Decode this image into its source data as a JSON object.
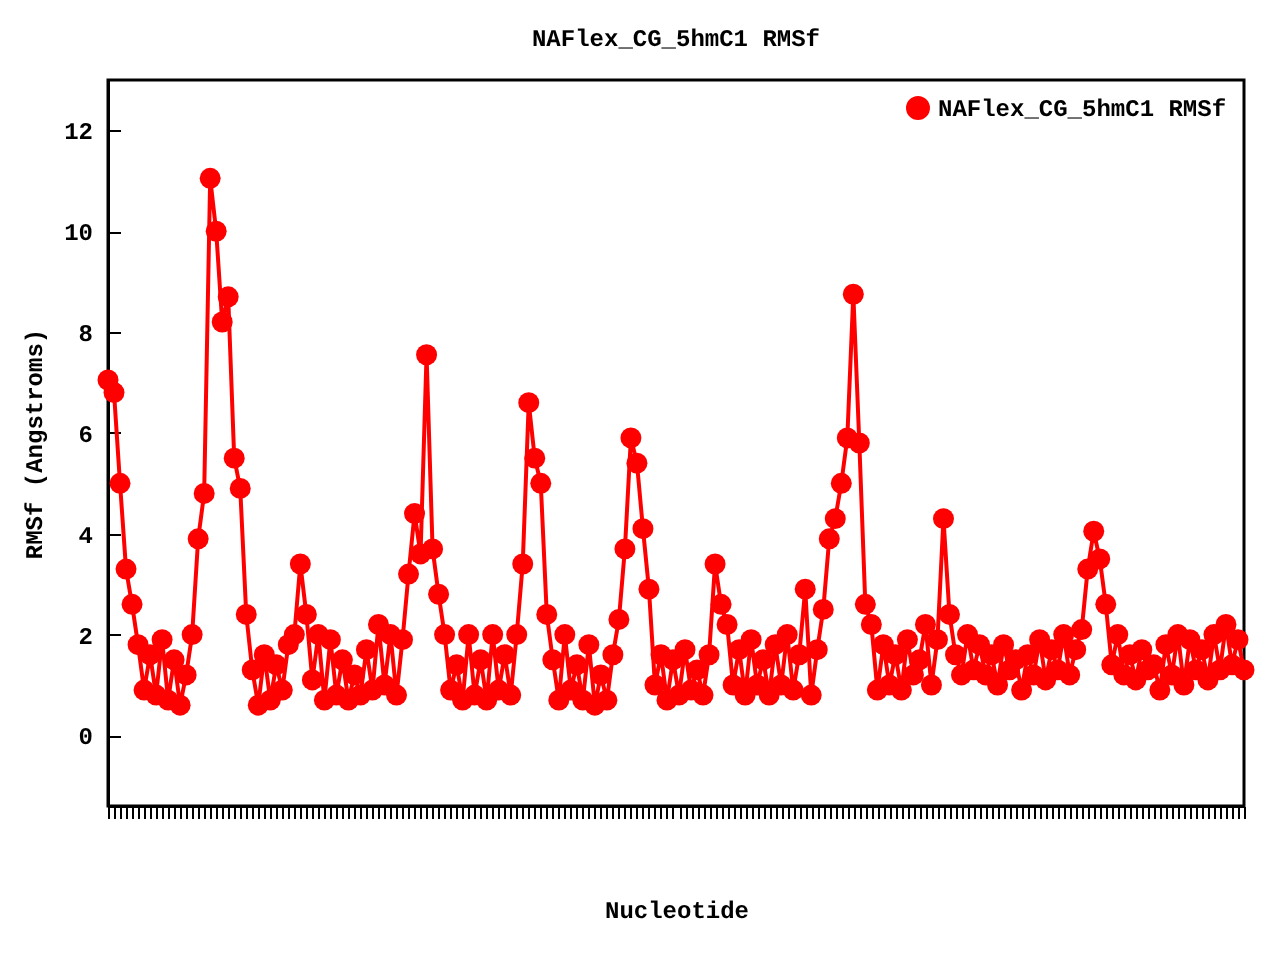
{
  "chart_data": {
    "type": "line",
    "title": "NAFlex_CG_5hmC1 RMSf",
    "xlabel": "Nucleotide",
    "ylabel": "RMSf (Angstroms)",
    "categories": [
      null,
      null,
      null,
      null,
      null,
      null,
      null,
      null,
      null,
      null,
      null,
      null,
      null,
      null,
      null,
      null,
      null,
      null,
      null,
      null,
      null,
      null,
      null,
      null,
      null,
      null,
      null,
      null,
      null,
      null,
      null,
      null,
      null,
      null,
      null,
      null,
      null,
      null,
      null,
      null,
      null,
      null,
      null,
      null,
      null,
      null,
      null,
      null,
      null,
      null,
      null,
      null,
      null,
      null,
      null,
      null,
      null,
      null,
      null,
      null,
      null,
      null,
      null,
      null,
      null,
      null,
      null,
      null,
      null,
      null,
      null,
      null,
      null,
      null,
      null,
      null,
      null,
      null,
      null,
      null,
      null,
      null,
      null,
      null,
      null,
      null,
      null,
      null,
      null,
      null,
      null,
      null,
      null,
      null,
      null,
      null,
      null,
      null,
      null,
      null,
      null,
      null,
      null,
      null,
      null,
      null,
      null,
      null,
      null,
      null,
      null,
      null,
      null,
      null,
      null,
      null,
      null,
      null,
      null,
      null,
      null,
      null,
      null,
      null,
      null,
      null,
      null,
      null,
      null,
      null,
      null,
      null,
      null,
      null,
      null,
      null,
      null,
      null,
      null,
      null,
      null,
      null,
      null,
      null,
      null,
      null,
      null,
      null,
      null,
      null,
      null,
      null,
      null,
      null,
      null,
      null,
      null,
      null,
      null,
      null,
      null,
      null,
      null,
      null,
      null,
      null,
      null,
      null,
      null,
      null,
      null,
      null,
      null,
      null,
      null,
      null,
      null,
      null,
      null,
      null,
      null,
      null,
      null,
      null,
      null,
      null,
      null,
      null,
      null,
      null
    ],
    "series": [
      {
        "name": "NAFlex_CG_5hmC1 RMSf",
        "color": "#ff0000",
        "values": [
          7.05,
          6.8,
          5.0,
          3.3,
          2.6,
          1.8,
          0.9,
          1.6,
          0.8,
          1.9,
          0.7,
          1.5,
          0.6,
          1.2,
          2.0,
          3.9,
          4.8,
          11.05,
          10.0,
          8.2,
          8.7,
          5.5,
          4.9,
          2.4,
          1.3,
          0.6,
          1.6,
          0.7,
          1.4,
          0.9,
          1.8,
          2.0,
          3.4,
          2.4,
          1.1,
          2.0,
          0.7,
          1.9,
          0.8,
          1.5,
          0.7,
          1.2,
          0.8,
          1.7,
          0.9,
          2.2,
          1.0,
          2.0,
          0.8,
          1.9,
          3.2,
          4.4,
          3.6,
          7.55,
          3.7,
          2.8,
          2.0,
          0.9,
          1.4,
          0.7,
          2.0,
          0.8,
          1.5,
          0.7,
          2.0,
          0.9,
          1.6,
          0.8,
          2.0,
          3.4,
          6.6,
          5.5,
          5.0,
          2.4,
          1.5,
          0.7,
          2.0,
          0.9,
          1.4,
          0.7,
          1.8,
          0.6,
          1.2,
          0.7,
          1.6,
          2.3,
          3.7,
          5.9,
          5.4,
          4.1,
          2.9,
          1.0,
          1.6,
          0.7,
          1.5,
          0.8,
          1.7,
          0.9,
          1.3,
          0.8,
          1.6,
          3.4,
          2.6,
          2.2,
          1.0,
          1.7,
          0.8,
          1.9,
          1.0,
          1.5,
          0.8,
          1.8,
          1.0,
          2.0,
          0.9,
          1.6,
          2.9,
          0.8,
          1.7,
          2.5,
          3.9,
          4.3,
          5.0,
          5.9,
          8.75,
          5.8,
          2.6,
          2.2,
          0.9,
          1.8,
          1.0,
          1.6,
          0.9,
          1.9,
          1.2,
          1.5,
          2.2,
          1.0,
          1.9,
          4.3,
          2.4,
          1.6,
          1.2,
          2.0,
          1.3,
          1.8,
          1.2,
          1.6,
          1.0,
          1.8,
          1.3,
          1.5,
          0.9,
          1.6,
          1.2,
          1.9,
          1.1,
          1.7,
          1.3,
          2.0,
          1.2,
          1.7,
          2.1,
          3.3,
          4.05,
          3.5,
          2.6,
          1.4,
          2.0,
          1.2,
          1.6,
          1.1,
          1.7,
          1.3,
          1.4,
          0.9,
          1.8,
          1.2,
          2.0,
          1.0,
          1.9,
          1.3,
          1.7,
          1.1,
          2.0,
          1.3,
          2.2,
          1.4,
          1.9,
          1.3
        ]
      }
    ],
    "ylim": [
      -1.4,
      13
    ],
    "yticks": [
      0,
      2,
      4,
      6,
      8,
      10,
      12
    ],
    "tick_labels": "y",
    "legend": "top right",
    "marker": "circle"
  }
}
